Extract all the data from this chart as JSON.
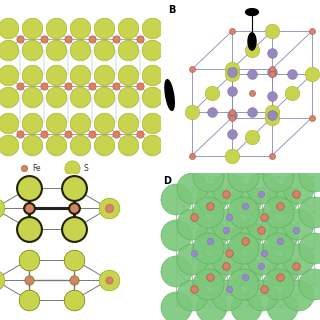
{
  "background_color": "#ffffff",
  "fe_color": "#d4826a",
  "s_color_a": "#c8d44e",
  "s_color_d": "#7dc87d",
  "bond_color": "#888888",
  "bond_color_dark": "#222222",
  "bond_color_blue": "#9999bb",
  "fe_label": "Fe",
  "s_label": "S",
  "panel_b_label": "B",
  "panel_d_label": "D"
}
